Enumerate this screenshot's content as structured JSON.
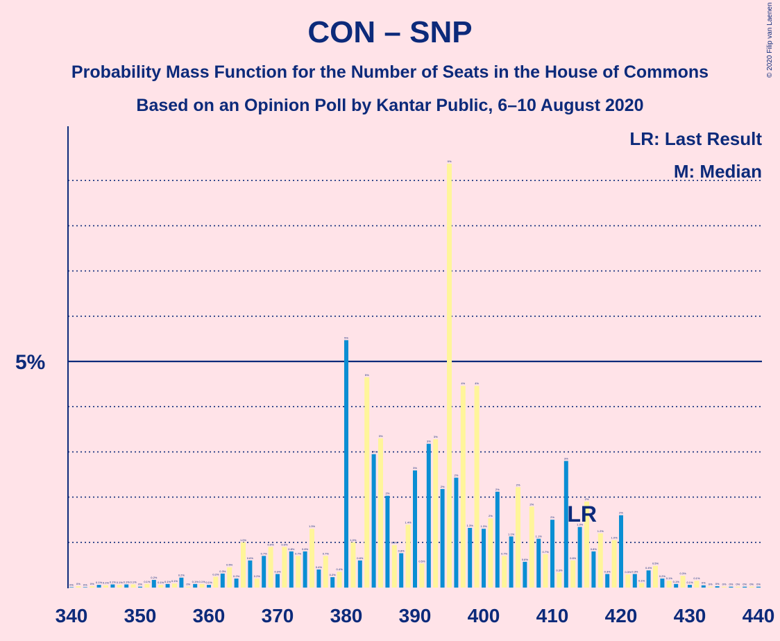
{
  "title": "CON – SNP",
  "subtitle1": "Probability Mass Function for the Number of Seats in the House of Commons",
  "subtitle2": "Based on an Opinion Poll by Kantar Public, 6–10 August 2020",
  "copyright": "© 2020 Filip van Laenen",
  "legend": {
    "lr": "LR: Last Result",
    "m": "M: Median"
  },
  "colors": {
    "background": "#ffe3e8",
    "blue": "#0a8ed3",
    "yellow": "#fff59a",
    "text": "#0c2a7a"
  },
  "chart_data": {
    "type": "bar",
    "xlabel": "",
    "ylabel": "",
    "xlim": [
      340,
      440
    ],
    "ylim": [
      0,
      10.3
    ],
    "x_ticks": [
      340,
      350,
      360,
      370,
      380,
      390,
      400,
      410,
      420,
      430,
      440
    ],
    "y_major_label": "5%",
    "y_major": 5,
    "y_gridlines": [
      1,
      2,
      3,
      4,
      6,
      7,
      8,
      9
    ],
    "last_result_seat": 413,
    "last_result_label": "LR",
    "median_seat": 395,
    "seats": [
      340,
      341,
      342,
      343,
      344,
      345,
      346,
      347,
      348,
      349,
      350,
      351,
      352,
      353,
      354,
      355,
      356,
      357,
      358,
      359,
      360,
      361,
      362,
      363,
      364,
      365,
      366,
      367,
      368,
      369,
      370,
      371,
      372,
      373,
      374,
      375,
      376,
      377,
      378,
      379,
      380,
      381,
      382,
      383,
      384,
      385,
      386,
      387,
      388,
      389,
      390,
      391,
      392,
      393,
      394,
      395,
      396,
      397,
      398,
      399,
      400,
      401,
      402,
      403,
      404,
      405,
      406,
      407,
      408,
      409,
      410,
      411,
      412,
      413,
      414,
      415,
      416,
      417,
      418,
      419,
      420,
      421,
      422,
      423,
      424,
      425,
      426,
      427,
      428,
      429,
      430,
      431,
      432,
      433,
      434,
      435,
      436,
      437,
      438,
      439,
      440
    ],
    "values": [
      0.01,
      0.03,
      0.01,
      0.03,
      0.06,
      0.05,
      0.07,
      0.06,
      0.07,
      0.07,
      0.02,
      0.08,
      0.17,
      0.06,
      0.08,
      0.09,
      0.22,
      0.02,
      0.08,
      0.08,
      0.06,
      0.24,
      0.31,
      0.45,
      0.2,
      1.0,
      0.6,
      0.2,
      0.7,
      0.9,
      0.3,
      0.9,
      0.8,
      0.7,
      0.8,
      1.3,
      0.4,
      0.7,
      0.23,
      0.35,
      5.47,
      1.0,
      0.6,
      4.65,
      2.95,
      3.3,
      2.03,
      0.94,
      0.76,
      1.39,
      2.59,
      0.53,
      3.18,
      3.28,
      2.18,
      9.37,
      2.43,
      4.46,
      1.32,
      4.46,
      1.3,
      1.53,
      2.12,
      0.7,
      1.13,
      2.22,
      0.57,
      1.79,
      1.08,
      0.74,
      1.5,
      0.33,
      2.8,
      0.6,
      1.34,
      1.9,
      0.8,
      1.2,
      0.3,
      1.05,
      1.6,
      0.29,
      0.3,
      0.1,
      0.38,
      0.48,
      0.2,
      0.15,
      0.08,
      0.26,
      0.06,
      0.15,
      0.05,
      0.02,
      0.03,
      0.02,
      0.02,
      0.02,
      0.02,
      0.02,
      0.02
    ],
    "labels": [
      "0%",
      "0%",
      "0%",
      "0%",
      "0.1%",
      "0.1%",
      "0.1%",
      "0.1%",
      "0.1%",
      "0.1%",
      "0%",
      "0.1%",
      "0.2%",
      "0.1%",
      "0.1%",
      "0.1%",
      "0.2%",
      "0%",
      "0.1%",
      "0.1%",
      "0.1%",
      "0.2%",
      "0.3%",
      "0.5%",
      "0.2%",
      "1.0%",
      "0.6%",
      "0.2%",
      "0.7%",
      "0.9%",
      "0.3%",
      "0.9%",
      "0.8%",
      "0.7%",
      "0.8%",
      "1.3%",
      "0.4%",
      "0.7%",
      "0.2%",
      "0.4%",
      "5%",
      "1.0%",
      "0.6%",
      "5%",
      "3%",
      "3%",
      "2%",
      "0.9%",
      "0.8%",
      "1.4%",
      "3%",
      "0.5%",
      "3%",
      "3%",
      "2%",
      "9%",
      "2%",
      "4%",
      "1.3%",
      "4%",
      "1.3%",
      "2%",
      "2%",
      "0.7%",
      "1.1%",
      "2%",
      "0.6%",
      "2%",
      "1.1%",
      "0.7%",
      "2%",
      "0.3%",
      "3%",
      "0.6%",
      "1.3%",
      "2%",
      "0.8%",
      "1.2%",
      "0.3%",
      "1.0%",
      "2%",
      "0.3%",
      "0.3%",
      "0.1%",
      "0.4%",
      "0.5%",
      "0.2%",
      "0.1%",
      "0.1%",
      "0.3%",
      "0.1%",
      "0.1%",
      "0%",
      "0%",
      "0%",
      "0%",
      "0%",
      "0%",
      "0%",
      "0%",
      "0%"
    ]
  }
}
